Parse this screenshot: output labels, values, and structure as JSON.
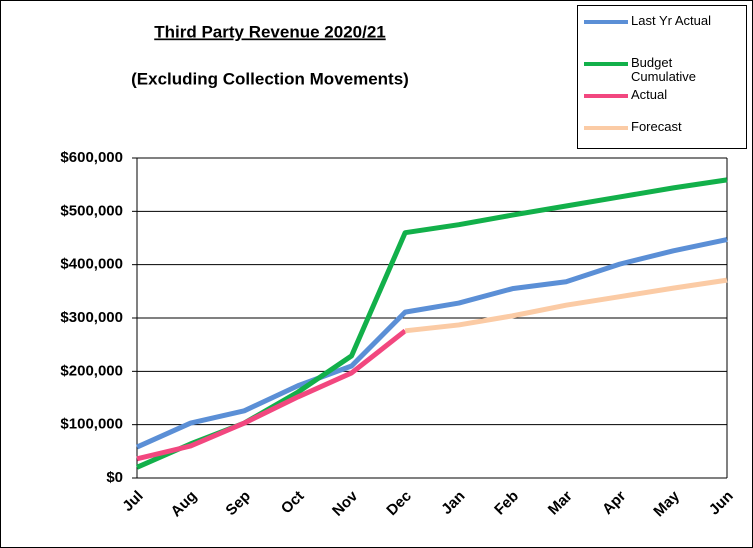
{
  "chart_data": {
    "type": "line",
    "title": "Third Party Revenue 2020/21",
    "subtitle": "(Excluding Collection Movements)",
    "categories": [
      "Jul",
      "Aug",
      "Sep",
      "Oct",
      "Nov",
      "Dec",
      "Jan",
      "Feb",
      "Mar",
      "Apr",
      "May",
      "Jun"
    ],
    "series": [
      {
        "name": "Last Yr Actual",
        "color": "#5b8fd6",
        "values": [
          58000,
          103000,
          126000,
          173000,
          210000,
          311000,
          328000,
          355000,
          368000,
          401000,
          426000,
          447000
        ]
      },
      {
        "name": "Budget Cumulative",
        "color": "#12b04a",
        "values": [
          20000,
          64000,
          103000,
          161000,
          229000,
          460000,
          475000,
          493000,
          510000,
          527000,
          544000,
          559000
        ]
      },
      {
        "name": "Actual",
        "color": "#f2477f",
        "values": [
          36000,
          60000,
          103000,
          152000,
          197000,
          276000,
          null,
          null,
          null,
          null,
          null,
          null
        ]
      },
      {
        "name": "Forecast",
        "color": "#fbcba5",
        "values": [
          null,
          null,
          null,
          null,
          null,
          276000,
          287000,
          304000,
          324000,
          340000,
          356000,
          371000
        ]
      }
    ],
    "ylim": [
      0,
      600000
    ],
    "yticks": [
      {
        "value": 0,
        "label": "$0"
      },
      {
        "value": 100000,
        "label": "$100,000"
      },
      {
        "value": 200000,
        "label": "$200,000"
      },
      {
        "value": 300000,
        "label": "$300,000"
      },
      {
        "value": 400000,
        "label": "$400,000"
      },
      {
        "value": 500000,
        "label": "$500,000"
      },
      {
        "value": 600000,
        "label": "$600,000"
      }
    ],
    "grid": true,
    "legend": "upper right"
  }
}
